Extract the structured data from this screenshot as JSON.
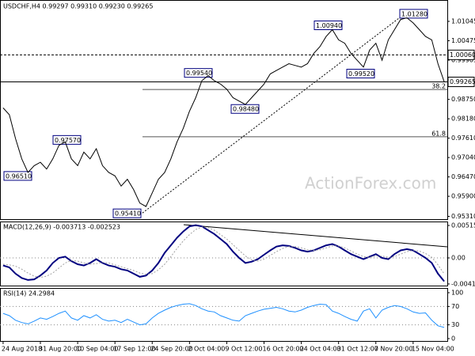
{
  "chart_data": [
    {
      "type": "line",
      "title": "USDCHF,H4 0.99297 0.99310 0.99230 0.99265",
      "watermark": "ActionForex.com",
      "categories": [
        "24 Aug 2018",
        null,
        null,
        null,
        null,
        null,
        "31 Aug 20:00",
        null,
        null,
        null,
        null,
        null,
        "10 Sep 04:00",
        null,
        null,
        null,
        null,
        null,
        "17 Sep 12:00",
        null,
        null,
        null,
        null,
        null,
        "24 Sep 20:00",
        null,
        null,
        null,
        null,
        null,
        "2 Oct 04:00",
        null,
        null,
        null,
        null,
        null,
        "9 Oct 12:00",
        null,
        null,
        null,
        null,
        null,
        "16 Oct 20:00",
        null,
        null,
        null,
        null,
        null,
        "24 Oct 04:00",
        null,
        null,
        null,
        null,
        null,
        "31 Oct 12:00",
        null,
        null,
        null,
        null,
        null,
        "7 Nov 20:00",
        null,
        null,
        null,
        null,
        null,
        "15 Nov 04:00",
        null,
        null,
        null,
        null,
        null
      ],
      "series": [
        {
          "color": "#000000",
          "values": [
            0.985,
            0.983,
            0.976,
            0.97,
            0.966,
            0.968,
            0.969,
            0.967,
            0.97,
            0.974,
            0.975,
            0.97,
            0.968,
            0.972,
            0.97,
            0.973,
            0.968,
            0.966,
            0.965,
            0.962,
            0.964,
            0.961,
            0.957,
            0.956,
            0.96,
            0.964,
            0.966,
            0.97,
            0.975,
            0.979,
            0.984,
            0.988,
            0.993,
            0.9945,
            0.993,
            0.992,
            0.9905,
            0.988,
            0.987,
            0.986,
            0.988,
            0.99,
            0.992,
            0.995,
            0.996,
            0.997,
            0.998,
            0.9975,
            0.997,
            0.998,
            1.001,
            1.003,
            1.006,
            1.008,
            1.005,
            1.004,
            1.001,
            0.999,
            0.997,
            1.002,
            1.004,
            0.999,
            1.005,
            1.008,
            1.011,
            1.0115,
            1.01,
            1.008,
            1.006,
            1.005,
            0.998,
            0.9927
          ]
        }
      ],
      "ylim": [
        0.95205,
        1.01673
      ],
      "yticks": [
        1.01045,
        1.00475,
        0.99905,
        {
          "value": 0.9875,
          "label": "0.98750"
        },
        {
          "value": 0.9818,
          "label": "0.98180"
        },
        {
          "value": 0.9761,
          "label": "0.97610"
        },
        {
          "value": 0.9704,
          "label": "0.97040"
        },
        {
          "value": 0.9647,
          "label": "0.96470"
        },
        {
          "value": 0.959,
          "label": "0.95900"
        },
        {
          "value": 0.9531,
          "label": "0.95310"
        }
      ],
      "levels": [
        {
          "value": 1.0006,
          "label": "1.00060"
        },
        {
          "value": 0.99265,
          "label": "0.99265"
        }
      ],
      "fib_levels": [
        {
          "value": 0.9904,
          "label": "38.2"
        },
        {
          "value": 0.97652,
          "label": "61.8"
        }
      ],
      "annotations": [
        {
          "value": 1.0128,
          "label": "1.01280"
        },
        {
          "value": 1.0094,
          "label": "1.00940"
        },
        {
          "value": 0.9954,
          "label": "0.99540"
        },
        {
          "value": 0.9757,
          "label": "0.97570"
        },
        {
          "value": 0.9651,
          "label": "0.96510"
        },
        {
          "value": 0.9541,
          "label": "0.95410"
        },
        {
          "value": 0.9848,
          "label": "0.98480"
        },
        {
          "value": 0.9952,
          "label": "0.99520"
        }
      ]
    },
    {
      "type": "line",
      "title": "MACD(12,26,9) -0.003713 -0.002523",
      "series": [
        {
          "color": "#000080",
          "values": [
            -0.0012,
            -0.0015,
            -0.0025,
            -0.0032,
            -0.0035,
            -0.0034,
            -0.0028,
            -0.002,
            -0.0008,
            0,
            0.0002,
            -0.0005,
            -0.001,
            -0.0012,
            -0.0008,
            -0.0002,
            -0.0008,
            -0.0012,
            -0.0014,
            -0.0018,
            -0.002,
            -0.0025,
            -0.003,
            -0.0028,
            -0.002,
            -0.0008,
            0.0008,
            0.002,
            0.0032,
            0.0042,
            0.005,
            0.0052,
            0.005,
            0.0044,
            0.0038,
            0.003,
            0.0022,
            0.001,
            0,
            -0.0008,
            -0.0006,
            -0.0002,
            0.0005,
            0.0012,
            0.0018,
            0.002,
            0.0019,
            0.0016,
            0.0012,
            0.001,
            0.0012,
            0.0016,
            0.002,
            0.0022,
            0.0018,
            0.0012,
            0.0006,
            0.0002,
            -0.0002,
            0.0002,
            0.0006,
            0,
            -0.0002,
            0.0006,
            0.0012,
            0.0014,
            0.0012,
            0.0006,
            0,
            -0.0008,
            -0.0025,
            -0.003713
          ]
        },
        {
          "color": "#a0a0a0",
          "values": [
            -0.001,
            -0.0011,
            -0.0013,
            -0.0018,
            -0.0024,
            -0.0029,
            -0.0031,
            -0.0029,
            -0.0024,
            -0.0016,
            -0.0008,
            -0.0004,
            -0.0005,
            -0.0008,
            -0.001,
            -0.0009,
            -0.0007,
            -0.0008,
            -0.0011,
            -0.0014,
            -0.0017,
            -0.002,
            -0.0024,
            -0.0026,
            -0.0025,
            -0.0019,
            -0.001,
            0.0002,
            0.0015,
            0.0027,
            0.0037,
            0.0045,
            0.0049,
            0.0048,
            0.0044,
            0.0037,
            0.003,
            0.0021,
            0.0012,
            0.0003,
            -0.0003,
            -0.0005,
            -0.0002,
            0.0004,
            0.001,
            0.0015,
            0.0018,
            0.0018,
            0.0016,
            0.0013,
            0.0012,
            0.0013,
            0.0016,
            0.0019,
            0.0019,
            0.0016,
            0.0011,
            0.0006,
            0.0002,
            0.0001,
            0.0003,
            0.0003,
            0.0001,
            0.0002,
            0.0006,
            0.001,
            0.0012,
            0.0011,
            0.0007,
            0.0001,
            -0.0011,
            -0.002523
          ]
        }
      ],
      "ylim": [
        -0.00452,
        0.00578
      ],
      "yticks": [
        0.005152,
        {
          "value": 0,
          "label": "0.00"
        },
        -0.004135
      ]
    },
    {
      "type": "line",
      "title": "RSI(14) 24.2984",
      "series": [
        {
          "color": "#1e90ff",
          "values": [
            55,
            50,
            40,
            35,
            32,
            38,
            45,
            42,
            48,
            55,
            60,
            45,
            40,
            50,
            45,
            52,
            42,
            38,
            40,
            35,
            42,
            36,
            30,
            32,
            45,
            55,
            62,
            68,
            72,
            75,
            76,
            72,
            65,
            60,
            58,
            50,
            45,
            40,
            38,
            50,
            55,
            60,
            64,
            66,
            68,
            65,
            60,
            58,
            62,
            68,
            72,
            75,
            74,
            60,
            55,
            48,
            42,
            38,
            60,
            65,
            45,
            62,
            68,
            72,
            70,
            65,
            58,
            55,
            56,
            40,
            28,
            24.2984
          ]
        }
      ],
      "ylim": [
        -6.9,
        110.3
      ],
      "yticks": [
        100,
        70,
        30,
        0
      ]
    }
  ]
}
